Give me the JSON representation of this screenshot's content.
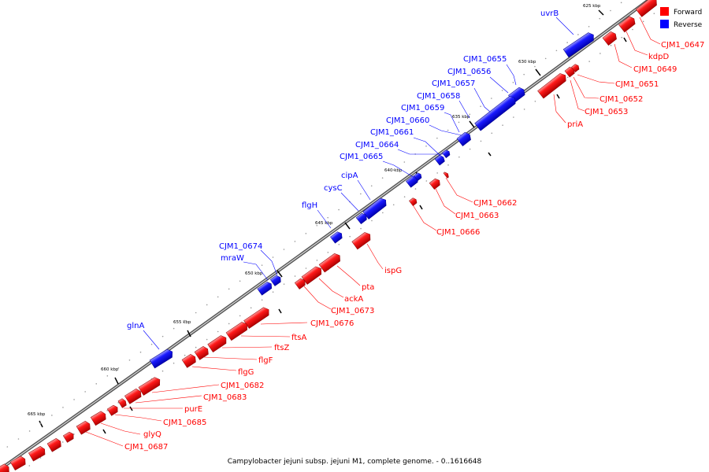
{
  "caption": "Campylobacter jejuni subsp. jejuni M1, complete genome. - 0..1616648",
  "legend": [
    {
      "label": "Forward",
      "color": "#ff0000"
    },
    {
      "label": "Reverse",
      "color": "#0000ff"
    }
  ],
  "colors": {
    "forward": "#ff0000",
    "reverse": "#0000ff",
    "backbone": "#888888"
  },
  "ticks": [
    "625 kbp",
    "630 kbp",
    "635 kbp",
    "640 kbp",
    "645 kbp",
    "650 kbp",
    "655 kbp",
    "660 kbp",
    "665 kbp"
  ],
  "reverse_labels": [
    "uvrB",
    "CJM1_0655",
    "CJM1_0656",
    "CJM1_0657",
    "CJM1_0658",
    "CJM1_0659",
    "CJM1_0660",
    "CJM1_0661",
    "CJM1_0664",
    "CJM1_0665",
    "cipA",
    "cysC",
    "flgH",
    "CJM1_0674",
    "mraW",
    "glnA"
  ],
  "forward_labels": [
    "CJM1_0647",
    "kdpD",
    "CJM1_0649",
    "CJM1_0651",
    "CJM1_0652",
    "CJM1_0653",
    "priA",
    "CJM1_0662",
    "CJM1_0663",
    "CJM1_0666",
    "ispG",
    "pta",
    "ackA",
    "CJM1_0673",
    "CJM1_0676",
    "ftsA",
    "ftsZ",
    "flgF",
    "flgG",
    "CJM1_0682",
    "CJM1_0683",
    "purE",
    "CJM1_0685",
    "glyQ",
    "CJM1_0687"
  ]
}
